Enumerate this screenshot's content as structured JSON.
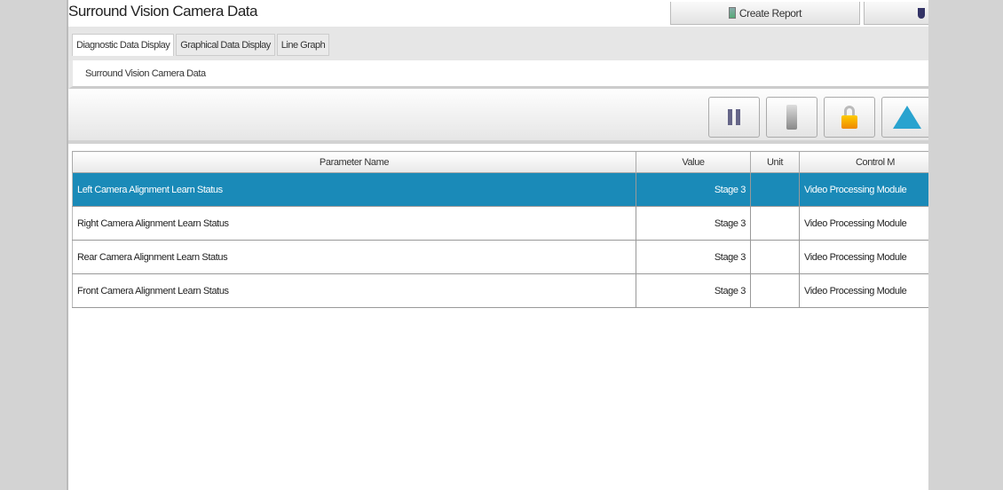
{
  "window": {
    "title": "Surround Vision Camera Data"
  },
  "top_buttons": {
    "create_report": "Create Report"
  },
  "tabs": [
    {
      "label": "Diagnostic Data Display",
      "active": true
    },
    {
      "label": "Graphical Data Display"
    },
    {
      "label": "Line Graph"
    }
  ],
  "subtitle": "Surround Vision Camera Data",
  "toolbar": {
    "icons": [
      "pause-icon",
      "switch-icon",
      "lock-icon",
      "up-arrow-icon"
    ]
  },
  "table": {
    "headers": [
      "Parameter Name",
      "Value",
      "Unit",
      "Control M"
    ],
    "rows": [
      {
        "name": "Left Camera Alignment Learn Status",
        "value": "Stage 3",
        "unit": "",
        "module": "Video Processing Module",
        "selected": true
      },
      {
        "name": "Right Camera Alignment Learn Status",
        "value": "Stage 3",
        "unit": "",
        "module": "Video Processing Module"
      },
      {
        "name": "Rear Camera Alignment Learn Status",
        "value": "Stage 3",
        "unit": "",
        "module": "Video Processing Module"
      },
      {
        "name": "Front Camera Alignment Learn Status",
        "value": "Stage 3",
        "unit": "",
        "module": "Video Processing Module"
      }
    ]
  },
  "colors": {
    "selection": "#1a8ab8",
    "background": "#d3d3d3"
  }
}
